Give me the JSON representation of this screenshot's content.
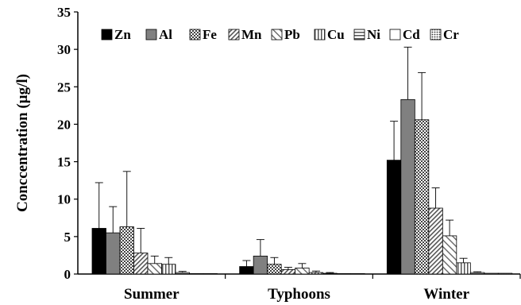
{
  "chart_data": {
    "type": "bar",
    "ylabel": "Conccentration (µg/l)",
    "ylim": [
      0,
      35
    ],
    "yticks": [
      "0",
      "5",
      "10",
      "15",
      "20",
      "25",
      "30",
      "35"
    ],
    "categories": [
      "Summer",
      "Typhoons",
      "Winter"
    ],
    "legend_position": "top-right",
    "series": [
      {
        "name": "Zn",
        "values": [
          6.1,
          1.0,
          15.2
        ],
        "errors": [
          6.1,
          0.8,
          5.2
        ],
        "pattern": "solid-black"
      },
      {
        "name": "Al",
        "values": [
          5.5,
          2.4,
          23.3
        ],
        "errors": [
          3.5,
          2.2,
          7.0
        ],
        "pattern": "solid-gray"
      },
      {
        "name": "Fe",
        "values": [
          6.3,
          1.3,
          20.6
        ],
        "errors": [
          7.4,
          0.9,
          6.3
        ],
        "pattern": "checker"
      },
      {
        "name": "Mn",
        "values": [
          2.8,
          0.6,
          8.8
        ],
        "errors": [
          3.3,
          0.3,
          2.7
        ],
        "pattern": "diag-dense"
      },
      {
        "name": "Pb",
        "values": [
          1.4,
          0.8,
          5.1
        ],
        "errors": [
          1.0,
          0.6,
          2.1
        ],
        "pattern": "diag-wide"
      },
      {
        "name": "Cu",
        "values": [
          1.3,
          0.2,
          1.5
        ],
        "errors": [
          0.9,
          0.2,
          0.6
        ],
        "pattern": "vertical"
      },
      {
        "name": "Ni",
        "values": [
          0.2,
          0.1,
          0.2
        ],
        "errors": [
          0.15,
          0.1,
          0.1
        ],
        "pattern": "horizontal"
      },
      {
        "name": "Cd",
        "values": [
          0.05,
          0.05,
          0.1
        ],
        "errors": [
          0,
          0,
          0
        ],
        "pattern": "white"
      },
      {
        "name": "Cr",
        "values": [
          0.05,
          0.05,
          0.1
        ],
        "errors": [
          0,
          0,
          0
        ],
        "pattern": "dotted"
      }
    ]
  }
}
